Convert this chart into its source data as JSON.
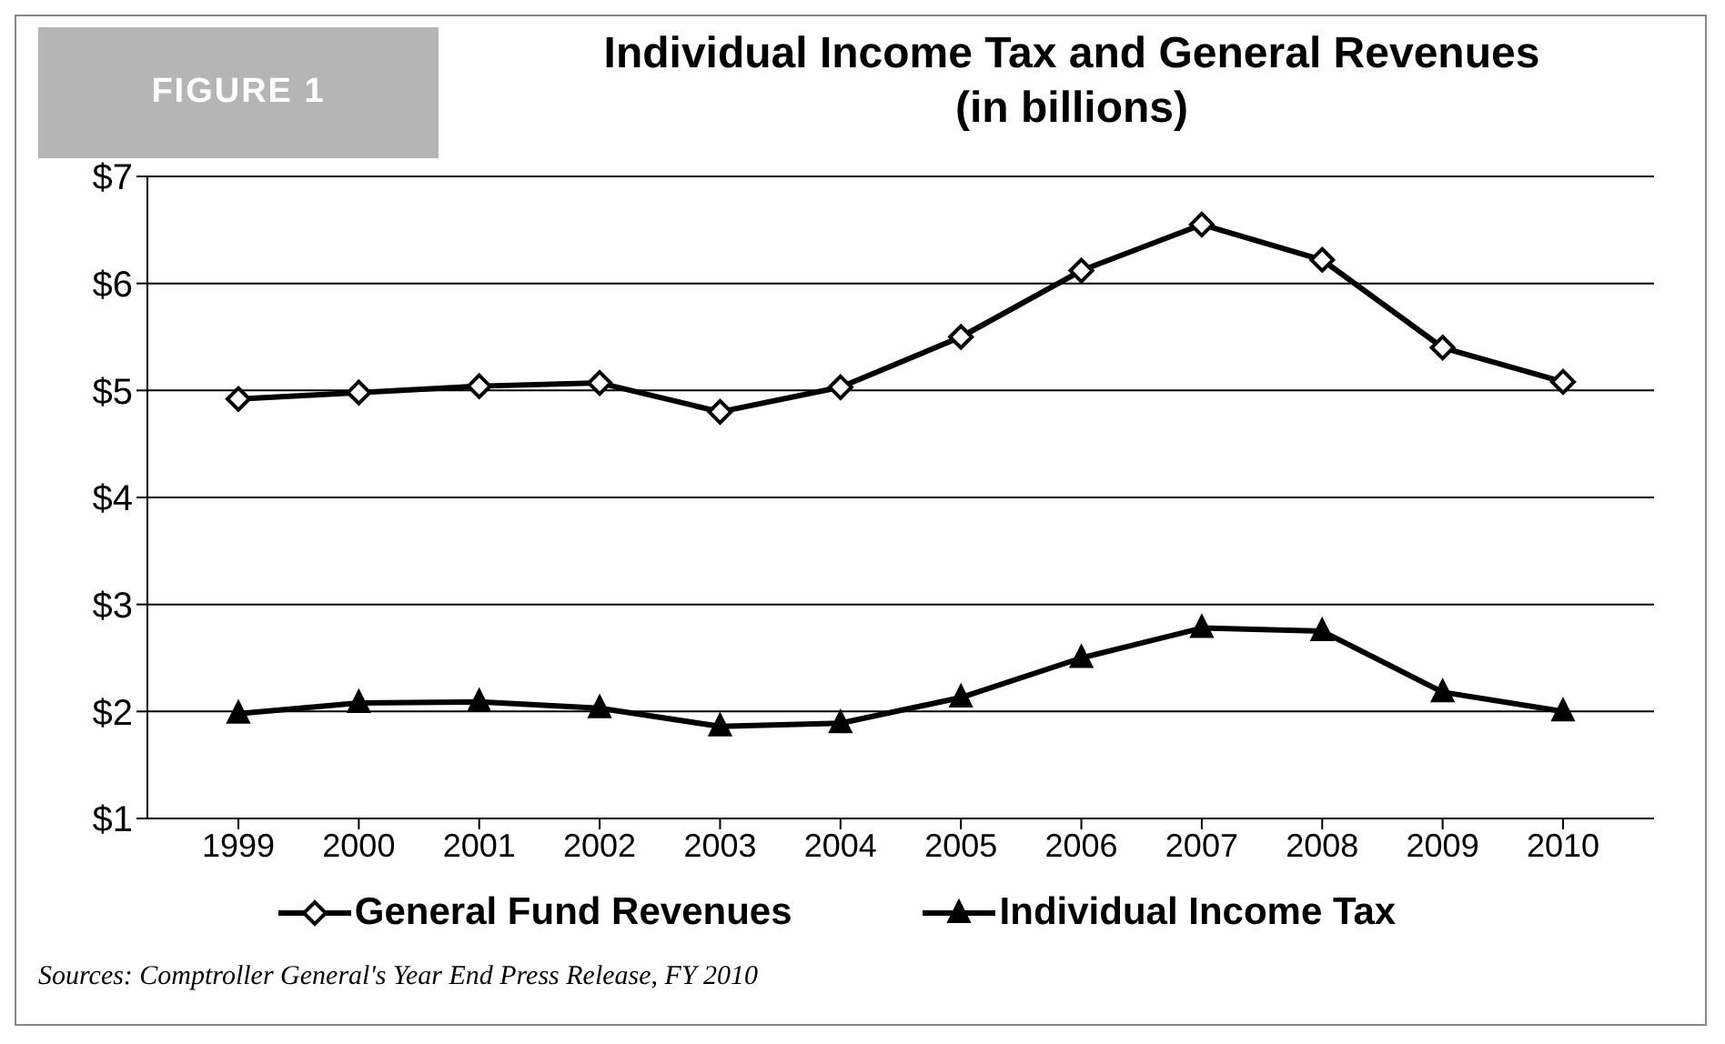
{
  "chart_data": {
    "type": "line",
    "title": "Individual Income Tax and General Revenues\n(in billions)",
    "categories": [
      "1999",
      "2000",
      "2001",
      "2002",
      "2003",
      "2004",
      "2005",
      "2006",
      "2007",
      "2008",
      "2009",
      "2010"
    ],
    "series": [
      {
        "name": "General Fund Revenues",
        "color": "#000000",
        "marker": "diamond",
        "values": [
          4.92,
          4.98,
          5.04,
          5.07,
          4.8,
          5.03,
          5.5,
          6.12,
          6.55,
          6.22,
          5.4,
          5.08
        ]
      },
      {
        "name": "Individual Income Tax",
        "color": "#000000",
        "marker": "triangle",
        "values": [
          1.98,
          2.08,
          2.09,
          2.03,
          1.86,
          1.89,
          2.13,
          2.5,
          2.78,
          2.75,
          2.18,
          2.0
        ]
      }
    ],
    "ylim": [
      1,
      7
    ],
    "yticks": [
      {
        "value": 1,
        "label": "$1"
      },
      {
        "value": 2,
        "label": "$2"
      },
      {
        "value": 3,
        "label": "$3"
      },
      {
        "value": 4,
        "label": "$4"
      },
      {
        "value": 5,
        "label": "$5"
      },
      {
        "value": 6,
        "label": "$6"
      },
      {
        "value": 7,
        "label": "$7"
      }
    ],
    "grid": "y",
    "legend": "bottom",
    "line_style": "solid",
    "annotations": [
      "FIGURE 1",
      "Sources: Comptroller General's Year End Press Release, FY 2010"
    ]
  }
}
